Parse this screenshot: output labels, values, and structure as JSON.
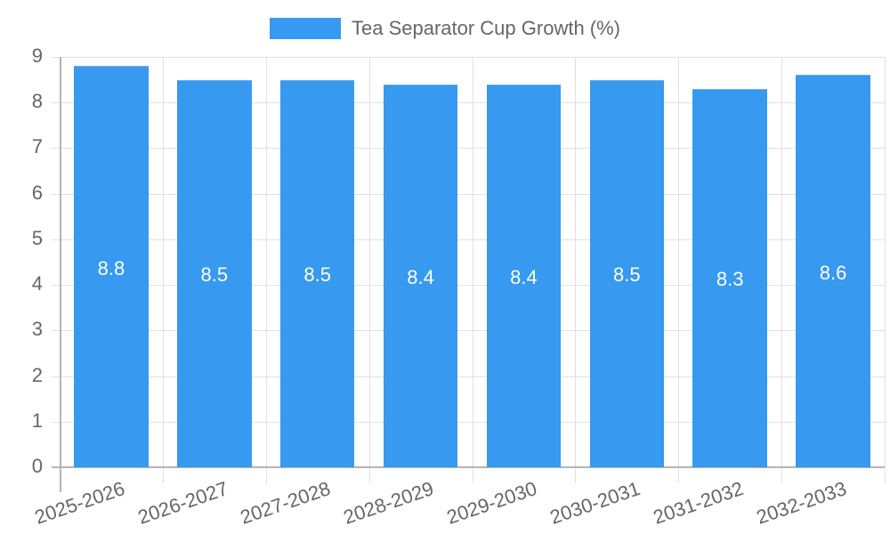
{
  "legend": {
    "label": "Tea Separator Cup Growth (%)",
    "color": "#3799ef"
  },
  "y_ticks": [
    "0",
    "1",
    "2",
    "3",
    "4",
    "5",
    "6",
    "7",
    "8",
    "9"
  ],
  "chart_data": {
    "type": "bar",
    "title": "",
    "categories": [
      "2025-2026",
      "2026-2027",
      "2027-2028",
      "2028-2029",
      "2029-2030",
      "2030-2031",
      "2031-2032",
      "2032-2033"
    ],
    "series": [
      {
        "name": "Tea Separator Cup Growth (%)",
        "values": [
          8.8,
          8.5,
          8.5,
          8.4,
          8.4,
          8.5,
          8.3,
          8.6
        ],
        "color": "#3799ef"
      }
    ],
    "data_labels": [
      "8.8",
      "8.5",
      "8.5",
      "8.4",
      "8.4",
      "8.5",
      "8.3",
      "8.6"
    ],
    "xlabel": "",
    "ylabel": "",
    "ylim": [
      0,
      9
    ],
    "grid": true,
    "legend_position": "top"
  }
}
